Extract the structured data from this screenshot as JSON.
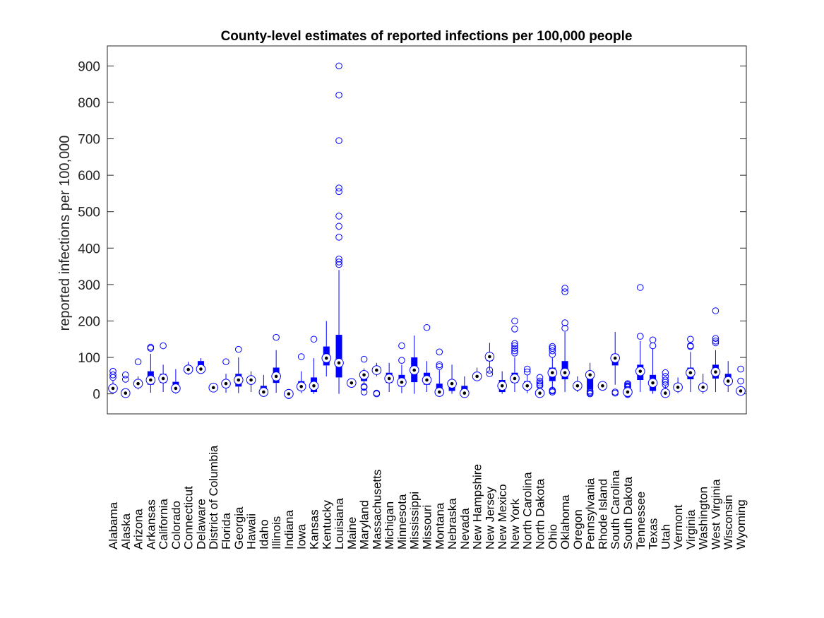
{
  "chart_data": {
    "type": "boxplot",
    "title": "County-level estimates of reported infections per 100,000 people",
    "ylabel": "reported infections per 100,000",
    "xlabel": "",
    "ylim": [
      -55,
      955
    ],
    "yticks": [
      0,
      100,
      200,
      300,
      400,
      500,
      600,
      700,
      800,
      900
    ],
    "ytick_labels": [
      "0",
      "100",
      "200",
      "300",
      "400",
      "500",
      "600",
      "700",
      "800",
      "900"
    ],
    "grid": false,
    "color": "#0000ff",
    "categories": [
      "Alabama",
      "Alaska",
      "Arizona",
      "Arkansas",
      "California",
      "Colorado",
      "Connecticut",
      "Delaware",
      "District of Columbia",
      "Florida",
      "Georgia",
      "Hawaii",
      "Idaho",
      "Illinois",
      "Indiana",
      "Iowa",
      "Kansas",
      "Kentucky",
      "Louisiana",
      "Maine",
      "Maryland",
      "Massachusetts",
      "Michigan",
      "Minnesota",
      "Mississippi",
      "Missouri",
      "Montana",
      "Nebraska",
      "Nevada",
      "New Hampshire",
      "New Jersey",
      "New Mexico",
      "New York",
      "North Carolina",
      "North Dakota",
      "Ohio",
      "Oklahoma",
      "Oregon",
      "Pennsylvania",
      "Rhode Island",
      "South Carolina",
      "South Dakota",
      "Tennessee",
      "Texas",
      "Utah",
      "Vermont",
      "Virginia",
      "Washington",
      "West Virginia",
      "Wisconsin",
      "Wyoming"
    ],
    "boxes": [
      {
        "median": 15,
        "q1": 10,
        "q3": 22,
        "whisker_low": 2,
        "whisker_high": 35,
        "outliers": [
          45,
          52,
          62
        ]
      },
      {
        "median": 2,
        "q1": 0,
        "q3": 5,
        "whisker_low": 0,
        "whisker_high": 10,
        "outliers": [
          40,
          52
        ]
      },
      {
        "median": 28,
        "q1": 22,
        "q3": 35,
        "whisker_low": 12,
        "whisker_high": 48,
        "outliers": [
          88
        ]
      },
      {
        "median": 38,
        "q1": 25,
        "q3": 62,
        "whisker_low": 3,
        "whisker_high": 110,
        "outliers": [
          125,
          128
        ]
      },
      {
        "median": 42,
        "q1": 30,
        "q3": 55,
        "whisker_low": 5,
        "whisker_high": 80,
        "outliers": [
          132
        ]
      },
      {
        "median": 15,
        "q1": 5,
        "q3": 33,
        "whisker_low": 0,
        "whisker_high": 68,
        "outliers": []
      },
      {
        "median": 67,
        "q1": 60,
        "q3": 72,
        "whisker_low": 52,
        "whisker_high": 88,
        "outliers": []
      },
      {
        "median": 68,
        "q1": 65,
        "q3": 90,
        "whisker_low": 60,
        "whisker_high": 98,
        "outliers": []
      },
      {
        "median": 17,
        "q1": 17,
        "q3": 17,
        "whisker_low": 17,
        "whisker_high": 17,
        "outliers": []
      },
      {
        "median": 28,
        "q1": 18,
        "q3": 35,
        "whisker_low": 3,
        "whisker_high": 55,
        "outliers": [
          88
        ]
      },
      {
        "median": 38,
        "q1": 20,
        "q3": 55,
        "whisker_low": 2,
        "whisker_high": 100,
        "outliers": [
          122
        ]
      },
      {
        "median": 38,
        "q1": 32,
        "q3": 45,
        "whisker_low": 5,
        "whisker_high": 62,
        "outliers": []
      },
      {
        "median": 5,
        "q1": 0,
        "q3": 22,
        "whisker_low": 0,
        "whisker_high": 52,
        "outliers": []
      },
      {
        "median": 48,
        "q1": 30,
        "q3": 72,
        "whisker_low": 3,
        "whisker_high": 120,
        "outliers": [
          155
        ]
      },
      {
        "median": 0,
        "q1": -3,
        "q3": 3,
        "whisker_low": -5,
        "whisker_high": 5,
        "outliers": [
          -5,
          -2,
          2,
          4
        ]
      },
      {
        "median": 20,
        "q1": 12,
        "q3": 35,
        "whisker_low": 2,
        "whisker_high": 62,
        "outliers": [
          102
        ]
      },
      {
        "median": 22,
        "q1": 5,
        "q3": 45,
        "whisker_low": 0,
        "whisker_high": 98,
        "outliers": [
          150
        ]
      },
      {
        "median": 98,
        "q1": 78,
        "q3": 130,
        "whisker_low": 48,
        "whisker_high": 200,
        "outliers": []
      },
      {
        "median": 85,
        "q1": 45,
        "q3": 162,
        "whisker_low": 0,
        "whisker_high": 340,
        "outliers": [
          355,
          362,
          370,
          430,
          460,
          488,
          555,
          565,
          695,
          820,
          900
        ]
      },
      {
        "median": 30,
        "q1": 25,
        "q3": 35,
        "whisker_low": 18,
        "whisker_high": 40,
        "outliers": []
      },
      {
        "median": 52,
        "q1": 35,
        "q3": 62,
        "whisker_low": 25,
        "whisker_high": 70,
        "outliers": [
          5,
          18,
          20,
          95
        ]
      },
      {
        "median": 65,
        "q1": 60,
        "q3": 72,
        "whisker_low": 48,
        "whisker_high": 85,
        "outliers": [
          0,
          2
        ]
      },
      {
        "median": 42,
        "q1": 30,
        "q3": 58,
        "whisker_low": 5,
        "whisker_high": 85,
        "outliers": []
      },
      {
        "median": 32,
        "q1": 20,
        "q3": 52,
        "whisker_low": 2,
        "whisker_high": 80,
        "outliers": [
          92,
          132
        ]
      },
      {
        "median": 65,
        "q1": 32,
        "q3": 100,
        "whisker_low": 0,
        "whisker_high": 160,
        "outliers": []
      },
      {
        "median": 38,
        "q1": 25,
        "q3": 58,
        "whisker_low": 5,
        "whisker_high": 90,
        "outliers": [
          182
        ]
      },
      {
        "median": 5,
        "q1": 0,
        "q3": 28,
        "whisker_low": 0,
        "whisker_high": 65,
        "outliers": [
          75,
          80,
          115
        ]
      },
      {
        "median": 28,
        "q1": 8,
        "q3": 35,
        "whisker_low": 0,
        "whisker_high": 80,
        "outliers": []
      },
      {
        "median": 2,
        "q1": 0,
        "q3": 22,
        "whisker_low": 0,
        "whisker_high": 48,
        "outliers": []
      },
      {
        "median": 48,
        "q1": 42,
        "q3": 55,
        "whisker_low": 35,
        "whisker_high": 72,
        "outliers": []
      },
      {
        "median": 102,
        "q1": 90,
        "q3": 112,
        "whisker_low": 65,
        "whisker_high": 140,
        "outliers": [
          55,
          65
        ]
      },
      {
        "median": 22,
        "q1": 5,
        "q3": 38,
        "whisker_low": 0,
        "whisker_high": 62,
        "outliers": []
      },
      {
        "median": 42,
        "q1": 30,
        "q3": 58,
        "whisker_low": 5,
        "whisker_high": 100,
        "outliers": [
          112,
          118,
          125,
          132,
          138,
          178,
          200
        ]
      },
      {
        "median": 22,
        "q1": 15,
        "q3": 35,
        "whisker_low": 2,
        "whisker_high": 52,
        "outliers": [
          60,
          68
        ]
      },
      {
        "median": 2,
        "q1": 0,
        "q3": 5,
        "whisker_low": 0,
        "whisker_high": 10,
        "outliers": [
          22,
          25,
          30,
          35,
          45
        ]
      },
      {
        "median": 58,
        "q1": 35,
        "q3": 72,
        "whisker_low": 12,
        "whisker_high": 100,
        "outliers": [
          5,
          8,
          10,
          108,
          118,
          125,
          130
        ]
      },
      {
        "median": 58,
        "q1": 40,
        "q3": 90,
        "whisker_low": 5,
        "whisker_high": 170,
        "outliers": [
          180,
          195,
          280,
          290
        ]
      },
      {
        "median": 22,
        "q1": 15,
        "q3": 30,
        "whisker_low": 5,
        "whisker_high": 48,
        "outliers": []
      },
      {
        "median": 52,
        "q1": 12,
        "q3": 55,
        "whisker_low": 8,
        "whisker_high": 85,
        "outliers": [
          0,
          2,
          5,
          8
        ]
      },
      {
        "median": 22,
        "q1": 18,
        "q3": 25,
        "whisker_low": 15,
        "whisker_high": 28,
        "outliers": []
      },
      {
        "median": 98,
        "q1": 78,
        "q3": 110,
        "whisker_low": 25,
        "whisker_high": 170,
        "outliers": [
          2,
          5
        ]
      },
      {
        "median": 5,
        "q1": 0,
        "q3": 10,
        "whisker_low": 0,
        "whisker_high": 15,
        "outliers": [
          -2,
          0,
          5,
          8,
          12,
          18,
          20,
          22,
          25,
          28
        ]
      },
      {
        "median": 62,
        "q1": 38,
        "q3": 80,
        "whisker_low": 5,
        "whisker_high": 145,
        "outliers": [
          158,
          292
        ]
      },
      {
        "median": 30,
        "q1": 8,
        "q3": 52,
        "whisker_low": 0,
        "whisker_high": 125,
        "outliers": [
          132,
          148
        ]
      },
      {
        "median": 2,
        "q1": 0,
        "q3": 10,
        "whisker_low": 0,
        "whisker_high": 22,
        "outliers": [
          25,
          32,
          38,
          48,
          58
        ]
      },
      {
        "median": 18,
        "q1": 12,
        "q3": 25,
        "whisker_low": 2,
        "whisker_high": 45,
        "outliers": []
      },
      {
        "median": 58,
        "q1": 40,
        "q3": 72,
        "whisker_low": 5,
        "whisker_high": 115,
        "outliers": [
          130,
          132,
          150
        ]
      },
      {
        "median": 18,
        "q1": 12,
        "q3": 25,
        "whisker_low": 0,
        "whisker_high": 55,
        "outliers": []
      },
      {
        "median": 60,
        "q1": 42,
        "q3": 80,
        "whisker_low": 5,
        "whisker_high": 120,
        "outliers": [
          140,
          145,
          152,
          228
        ]
      },
      {
        "median": 35,
        "q1": 25,
        "q3": 55,
        "whisker_low": 5,
        "whisker_high": 90,
        "outliers": []
      },
      {
        "median": 8,
        "q1": 2,
        "q3": 12,
        "whisker_low": 0,
        "whisker_high": 22,
        "outliers": [
          35,
          68
        ]
      }
    ]
  }
}
